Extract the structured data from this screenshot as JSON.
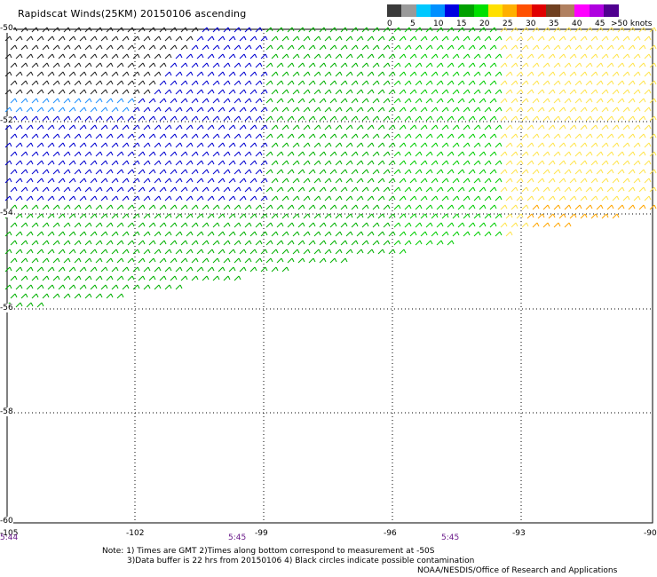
{
  "title": "Rapidscat Winds(25KM) 20150106 ascending",
  "legend": {
    "unit_label": ">50 knots",
    "ticks": [
      "0",
      "5",
      "10",
      "15",
      "20",
      "25",
      "30",
      "35",
      "40",
      "45"
    ],
    "colors": [
      "#3a3a3a",
      "#9a9a9a",
      "#00c8ff",
      "#0090ff",
      "#0000e0",
      "#00a000",
      "#00e000",
      "#ffe000",
      "#ffb000",
      "#ff5000",
      "#e00000",
      "#704020",
      "#b08060",
      "#ff00ff",
      "#b000e0",
      "#500090"
    ]
  },
  "map": {
    "latitudes": [
      "-50",
      "-52",
      "-54",
      "-56",
      "-58",
      "-60"
    ],
    "longitudes": [
      "-105",
      "-102",
      "-99",
      "-96",
      "-93",
      "-90"
    ],
    "times": [
      "5:44",
      "5:45",
      "5:45"
    ]
  },
  "notes": {
    "line1": "Note: 1) Times are GMT 2)Times along bottom correspond to measurement at -50S",
    "line2": "3)Data buffer is 22 hrs from 20150106 4) Black circles indicate possible contamination",
    "line3": "NOAA/NESDIS/Office of Research and Applications"
  }
}
